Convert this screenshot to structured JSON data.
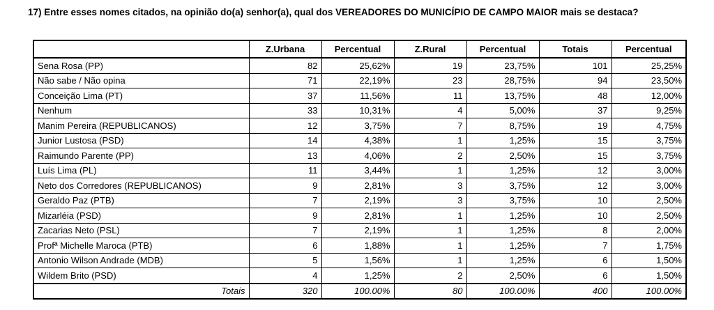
{
  "question": {
    "text": "17) Entre esses nomes citados, na opinião do(a) senhor(a), qual dos VEREADORES DO MUNICÍPIO DE CAMPO MAIOR mais se destaca?"
  },
  "table": {
    "headers": [
      "",
      "Z.Urbana",
      "Percentual",
      "Z.Rural",
      "Percentual",
      "Totais",
      "Percentual"
    ],
    "rows": [
      [
        "Sena Rosa (PP)",
        "82",
        "25,62%",
        "19",
        "23,75%",
        "101",
        "25,25%"
      ],
      [
        "Não sabe / Não opina",
        "71",
        "22,19%",
        "23",
        "28,75%",
        "94",
        "23,50%"
      ],
      [
        "Conceição Lima (PT)",
        "37",
        "11,56%",
        "11",
        "13,75%",
        "48",
        "12,00%"
      ],
      [
        "Nenhum",
        "33",
        "10,31%",
        "4",
        "5,00%",
        "37",
        "9,25%"
      ],
      [
        "Manim Pereira (REPUBLICANOS)",
        "12",
        "3,75%",
        "7",
        "8,75%",
        "19",
        "4,75%"
      ],
      [
        "Junior Lustosa (PSD)",
        "14",
        "4,38%",
        "1",
        "1,25%",
        "15",
        "3,75%"
      ],
      [
        "Raimundo Parente (PP)",
        "13",
        "4,06%",
        "2",
        "2,50%",
        "15",
        "3,75%"
      ],
      [
        "Luís Lima (PL)",
        "11",
        "3,44%",
        "1",
        "1,25%",
        "12",
        "3,00%"
      ],
      [
        "Neto dos Corredores (REPUBLICANOS)",
        "9",
        "2,81%",
        "3",
        "3,75%",
        "12",
        "3,00%"
      ],
      [
        "Geraldo Paz (PTB)",
        "7",
        "2,19%",
        "3",
        "3,75%",
        "10",
        "2,50%"
      ],
      [
        "Mizarléia (PSD)",
        "9",
        "2,81%",
        "1",
        "1,25%",
        "10",
        "2,50%"
      ],
      [
        "Zacarias Neto (PSL)",
        "7",
        "2,19%",
        "1",
        "1,25%",
        "8",
        "2,00%"
      ],
      [
        "Profª Michelle Maroca (PTB)",
        "6",
        "1,88%",
        "1",
        "1,25%",
        "7",
        "1,75%"
      ],
      [
        "Antonio Wilson Andrade (MDB)",
        "5",
        "1,56%",
        "1",
        "1,25%",
        "6",
        "1,50%"
      ],
      [
        "Wildem Brito (PSD)",
        "4",
        "1,25%",
        "2",
        "2,50%",
        "6",
        "1,50%"
      ]
    ],
    "totals_row": [
      "Totais",
      "320",
      "100.00%",
      "80",
      "100.00%",
      "400",
      "100.00%"
    ]
  }
}
